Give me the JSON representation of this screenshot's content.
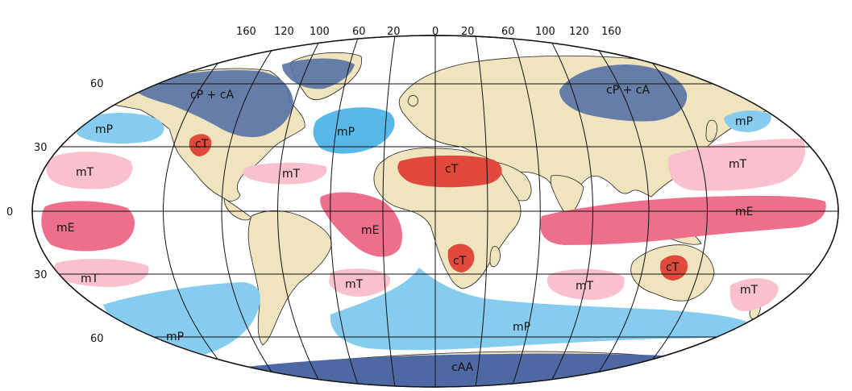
{
  "map": {
    "top_ticks": [
      "160",
      "120",
      "100",
      "60",
      "20",
      "0",
      "20",
      "60",
      "100",
      "120",
      "160"
    ],
    "lat_ticks": [
      "60",
      "30",
      "0",
      "30",
      "60"
    ],
    "colors": {
      "ocean": "#ffffff",
      "land": "#efe4bd",
      "cP_cA": "#5a74a6",
      "mP": "#86ccee",
      "mP_dark": "#58b8ea",
      "cT": "#e0493c",
      "mT": "#f8c1cd",
      "mE": "#ee6f8c",
      "cAA": "#4d68a3"
    },
    "labels": {
      "cp_north_america": "cP + cA",
      "cp_asia": "cP + cA",
      "mp_north_pacific": "mP",
      "mp_north_atlantic": "mP",
      "mp_west_pacific": "mP",
      "ct_north_america": "cT",
      "ct_sahara": "cT",
      "ct_southern_africa": "cT",
      "ct_australia": "cT",
      "mt_north_pacific_east": "mT",
      "mt_gulf": "mT",
      "mt_north_pacific_west": "mT",
      "mt_south_pacific_east": "mT",
      "mt_south_atlantic": "mT",
      "mt_indian_ocean": "mT",
      "mt_south_pacific_west": "mT",
      "me_pacific_east": "mE",
      "me_atlantic": "mE",
      "me_indo_pacific": "mE",
      "mp_southern_pacific": "mP",
      "mp_southern_ocean": "mP",
      "caa_antarctica": "cAA"
    }
  }
}
